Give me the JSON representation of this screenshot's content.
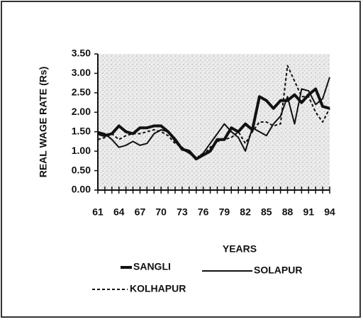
{
  "chart_data": {
    "type": "line",
    "ylabel": "REAL WAGE RATE (Rs)",
    "xlabel": "YEARS",
    "categories": [
      "61",
      null,
      null,
      "64",
      null,
      null,
      "67",
      null,
      null,
      "70",
      null,
      null,
      "73",
      null,
      null,
      "76",
      null,
      null,
      "79",
      null,
      null,
      "82",
      null,
      null,
      "85",
      null,
      null,
      "88",
      null,
      null,
      "91",
      null,
      null,
      "94"
    ],
    "series": [
      {
        "name": "SANGLI",
        "color": "#111111",
        "line_style": "thick",
        "values": [
          1.45,
          1.4,
          1.45,
          1.65,
          1.5,
          1.45,
          1.6,
          1.6,
          1.65,
          1.65,
          1.5,
          1.3,
          1.05,
          1.0,
          0.8,
          0.9,
          1.0,
          1.3,
          1.3,
          1.6,
          1.5,
          1.7,
          1.55,
          2.4,
          2.3,
          2.1,
          2.3,
          2.3,
          2.45,
          2.25,
          2.45,
          2.6,
          2.15,
          2.1
        ]
      },
      {
        "name": "SOLAPUR",
        "color": "#111111",
        "line_style": "thin",
        "values": [
          1.5,
          1.45,
          1.3,
          1.1,
          1.15,
          1.25,
          1.15,
          1.2,
          1.45,
          1.55,
          1.5,
          1.25,
          1.05,
          0.95,
          0.8,
          0.95,
          1.2,
          1.45,
          1.7,
          1.5,
          1.35,
          1.0,
          1.6,
          1.5,
          1.4,
          1.7,
          1.9,
          2.4,
          1.7,
          2.6,
          2.55,
          2.2,
          2.35,
          2.9
        ]
      },
      {
        "name": "KOLHAPUR",
        "color": "#111111",
        "line_style": "dashed",
        "values": [
          1.3,
          1.35,
          1.45,
          1.3,
          1.4,
          1.45,
          1.45,
          1.5,
          1.55,
          1.5,
          1.4,
          1.2,
          1.1,
          0.95,
          0.85,
          0.9,
          1.1,
          1.25,
          1.3,
          1.35,
          1.5,
          1.2,
          1.5,
          1.75,
          1.75,
          1.65,
          1.7,
          3.2,
          2.8,
          2.4,
          2.4,
          2.0,
          1.75,
          2.1
        ]
      }
    ],
    "ylim": [
      0,
      3.5
    ],
    "yticks": [
      {
        "value": 0,
        "label": "0.00"
      },
      {
        "value": 0.5,
        "label": "0.50"
      },
      {
        "value": 1,
        "label": "1.00"
      },
      {
        "value": 1.5,
        "label": "1.50"
      },
      {
        "value": 2,
        "label": "2.00"
      },
      {
        "value": 2.5,
        "label": "2.50"
      },
      {
        "value": 3,
        "label": "3.00"
      },
      {
        "value": 3.5,
        "label": "3.50"
      }
    ]
  }
}
